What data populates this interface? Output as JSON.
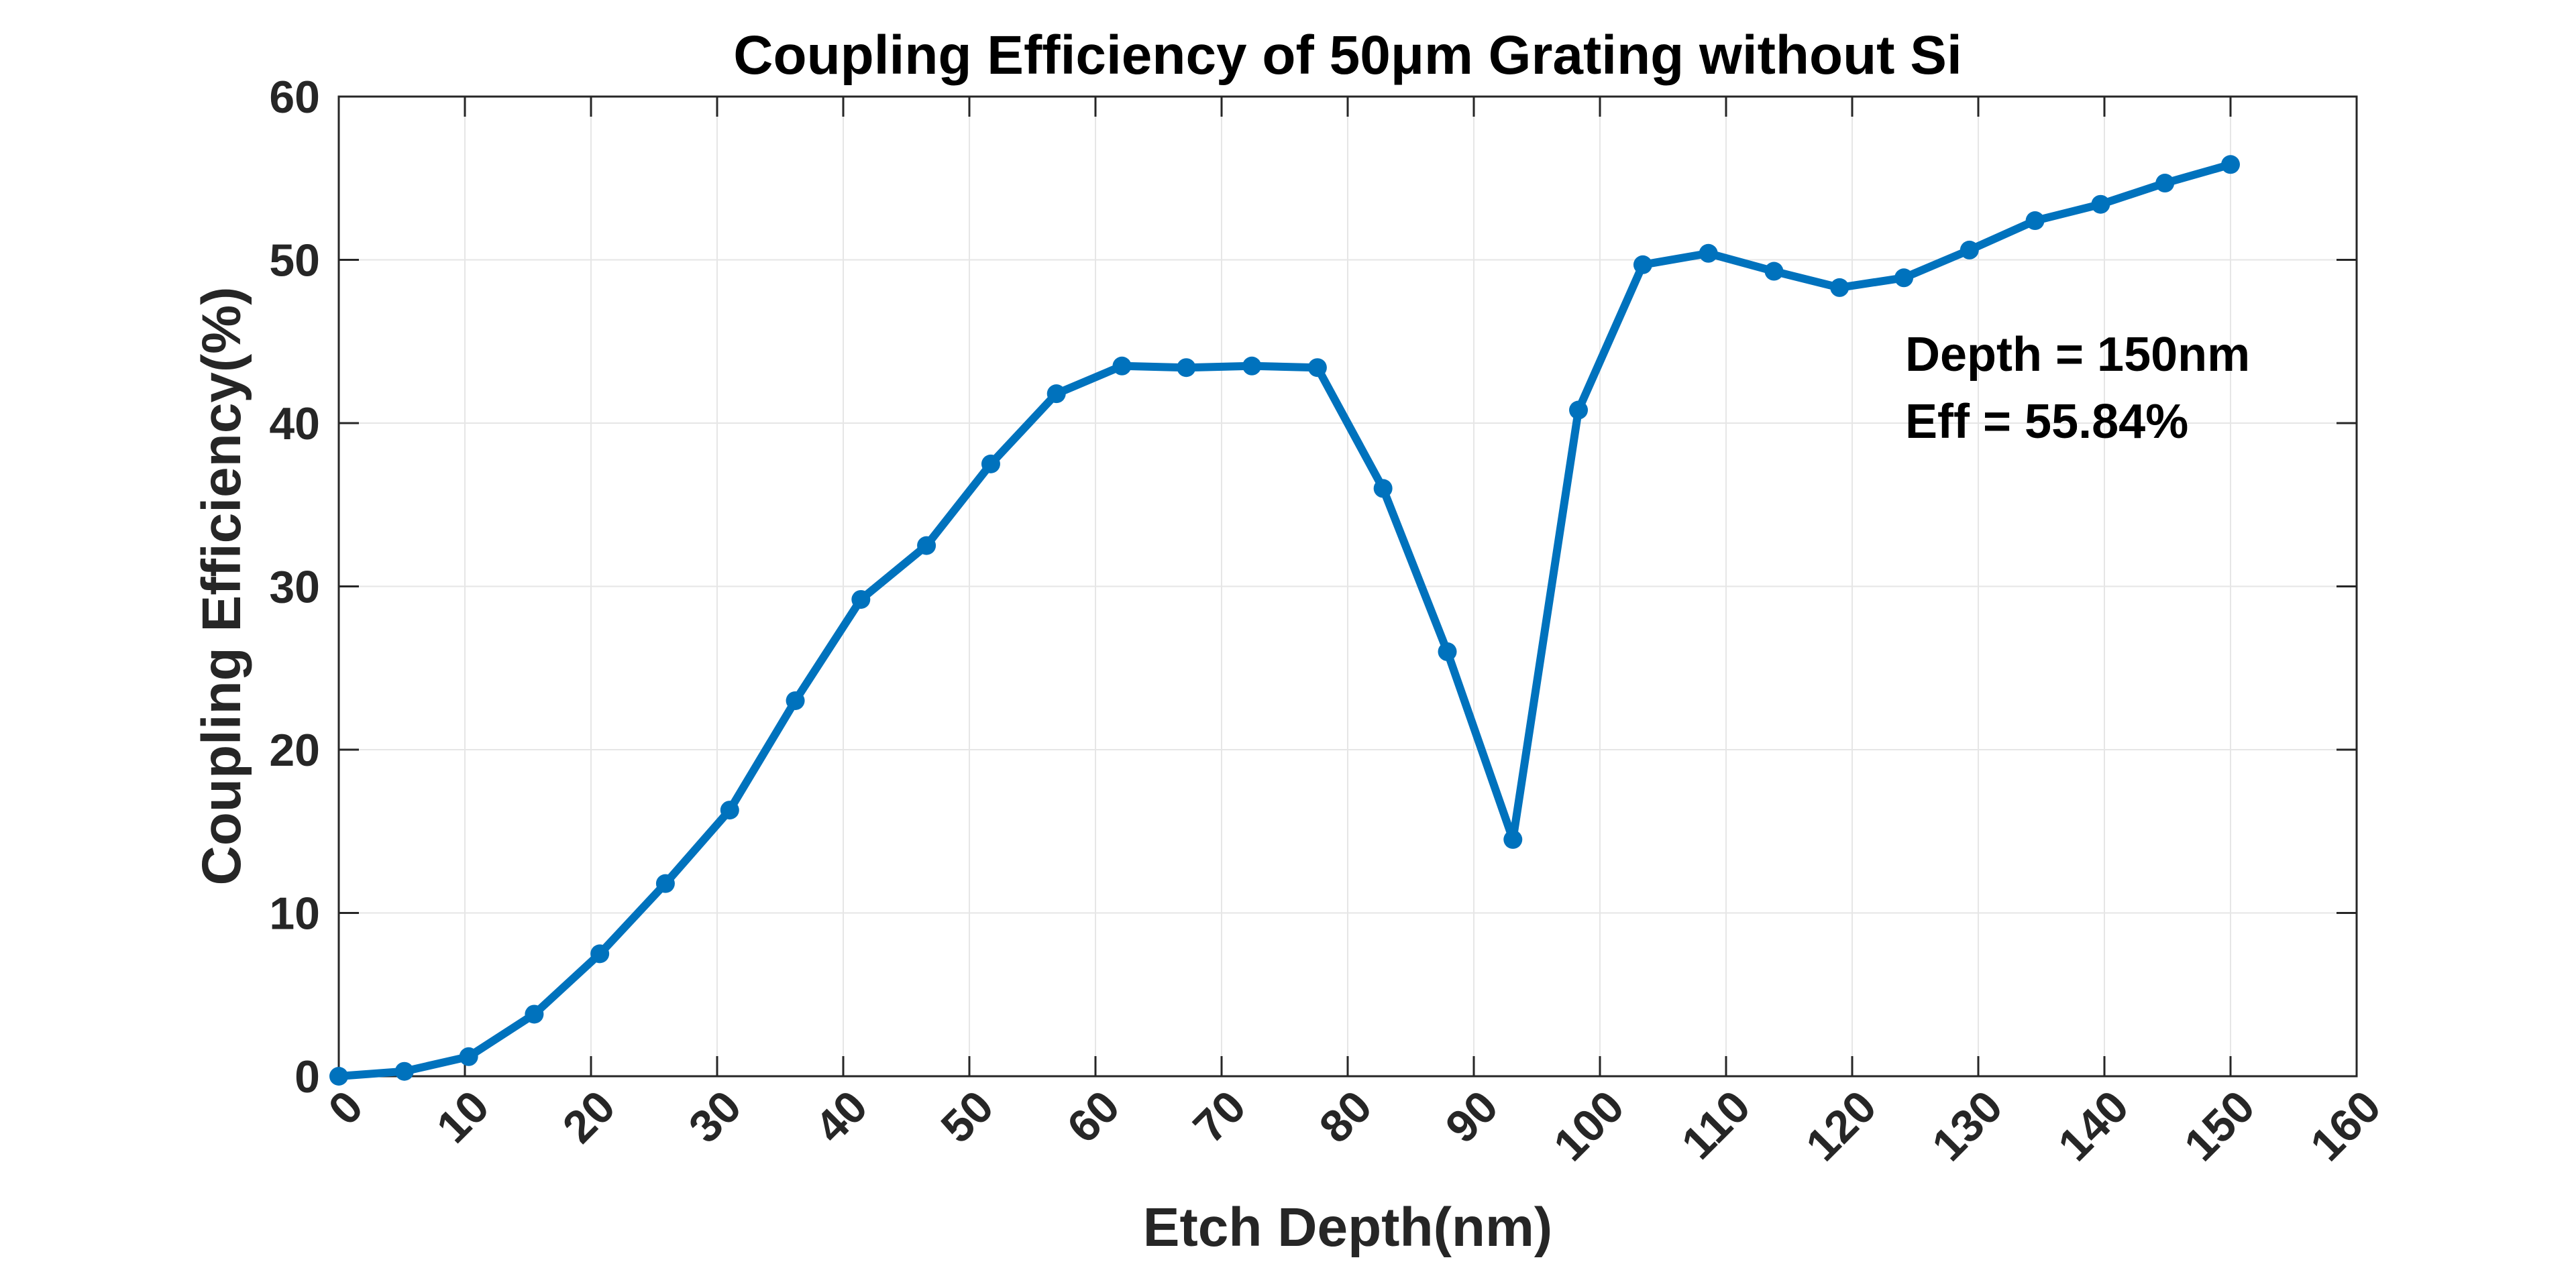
{
  "chart_data": {
    "type": "line",
    "title": "Coupling Efficiency of 50μm Grating without Si",
    "xlabel": "Etch Depth(nm)",
    "ylabel": "Coupling Efficiency(%)",
    "xlim": [
      0,
      160
    ],
    "ylim": [
      0,
      60
    ],
    "xticks": [
      "0",
      "10",
      "20",
      "30",
      "40",
      "50",
      "60",
      "70",
      "80",
      "90",
      "100",
      "110",
      "120",
      "130",
      "140",
      "150",
      "160"
    ],
    "yticks": [
      "0",
      "10",
      "20",
      "30",
      "40",
      "50",
      "60"
    ],
    "grid": true,
    "line_color": "#0072bd",
    "series": [
      {
        "x": [
          0,
          5.2,
          10.3,
          15.5,
          20.7,
          25.9,
          31.0,
          36.2,
          41.4,
          46.6,
          51.7,
          56.9,
          62.1,
          67.2,
          72.4,
          77.6,
          82.8,
          87.9,
          93.1,
          98.3,
          103.4,
          108.6,
          113.8,
          119.0,
          124.1,
          129.3,
          134.5,
          139.7,
          144.8,
          150.0
        ],
        "values": [
          0.0,
          0.3,
          1.2,
          3.8,
          7.5,
          11.8,
          16.3,
          23.0,
          29.2,
          32.5,
          37.5,
          41.8,
          43.5,
          43.4,
          43.5,
          43.4,
          36.0,
          26.0,
          14.5,
          40.8,
          49.7,
          50.4,
          49.3,
          48.3,
          48.9,
          50.6,
          52.4,
          53.4,
          54.7,
          55.84
        ]
      }
    ],
    "annotation": {
      "line1": "Depth = 150nm",
      "line2": "Eff = 55.84%"
    }
  }
}
